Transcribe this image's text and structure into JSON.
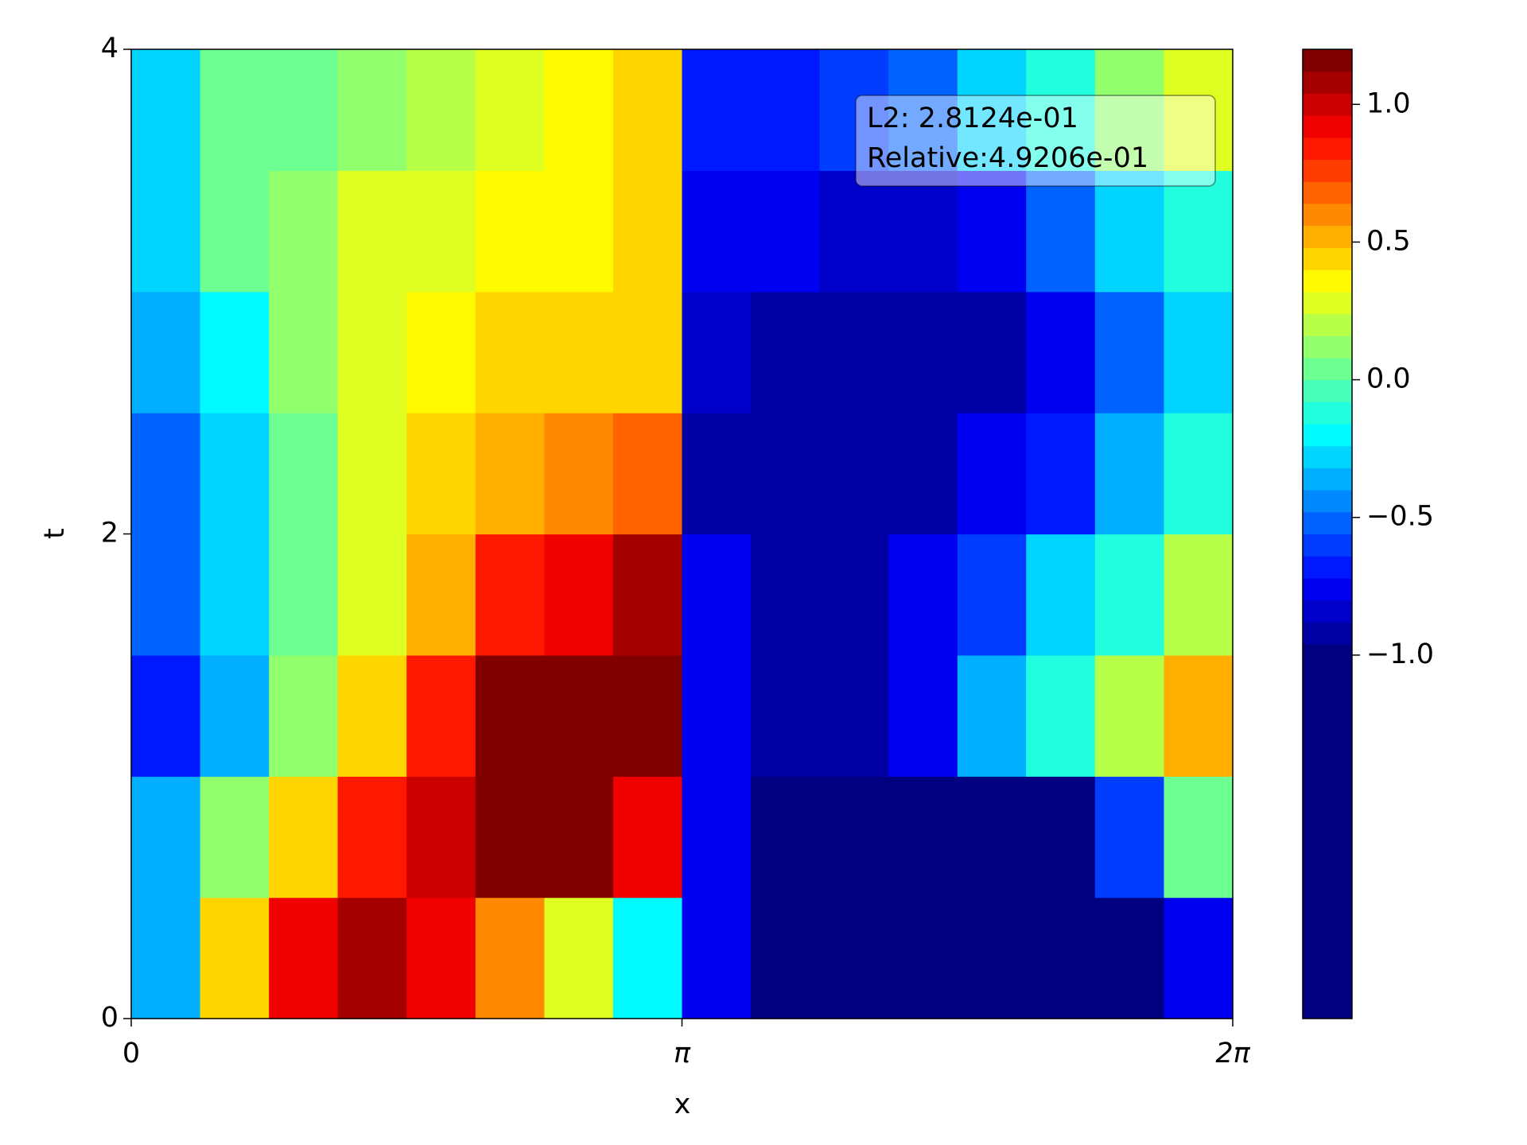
{
  "chart_data": {
    "type": "contourf",
    "xlabel": "x",
    "ylabel": "t",
    "colormap": "jet",
    "xlim": [
      0,
      6.2832
    ],
    "xticks": [
      0,
      {
        "value": 3.1416,
        "label": "π"
      },
      {
        "value": 6.2832,
        "label": "2π"
      }
    ],
    "ylim": [
      0,
      4
    ],
    "yticks": [
      0,
      2,
      4
    ],
    "x": [
      0.196,
      0.589,
      0.982,
      1.374,
      1.767,
      2.16,
      2.553,
      2.945,
      3.338,
      3.731,
      4.123,
      4.516,
      4.909,
      5.301,
      5.694,
      6.087
    ],
    "y": [
      0.25,
      0.75,
      1.25,
      1.75,
      2.25,
      2.75,
      3.25,
      3.75
    ],
    "z": [
      [
        -0.4,
        0.4,
        0.9,
        1.1,
        0.9,
        0.6,
        0.3,
        -0.2,
        -0.8,
        -1.3,
        -1.3,
        -1.3,
        -1.3,
        -1.3,
        -1.2,
        -0.8
      ],
      [
        -0.4,
        0.1,
        0.4,
        0.8,
        1.0,
        1.15,
        1.15,
        0.9,
        -0.8,
        -1.3,
        -1.3,
        -1.3,
        -1.3,
        -1.0,
        -0.6,
        0.0
      ],
      [
        -0.7,
        -0.4,
        0.1,
        0.4,
        0.8,
        1.15,
        1.15,
        1.15,
        -0.8,
        -0.9,
        -0.9,
        -0.8,
        -0.4,
        -0.1,
        0.2,
        0.5
      ],
      [
        -0.5,
        -0.3,
        0.0,
        0.3,
        0.5,
        0.8,
        0.9,
        1.1,
        -0.8,
        -0.9,
        -0.9,
        -0.8,
        -0.6,
        -0.3,
        -0.1,
        0.2
      ],
      [
        -0.5,
        -0.3,
        0.0,
        0.3,
        0.4,
        0.5,
        0.6,
        0.7,
        -0.9,
        -0.95,
        -0.95,
        -0.9,
        -0.8,
        -0.7,
        -0.4,
        -0.1
      ],
      [
        -0.4,
        -0.2,
        0.1,
        0.3,
        0.35,
        0.45,
        0.4,
        0.4,
        -0.85,
        -0.95,
        -0.95,
        -0.95,
        -0.9,
        -0.8,
        -0.5,
        -0.3
      ],
      [
        -0.3,
        0.0,
        0.1,
        0.25,
        0.3,
        0.35,
        0.35,
        0.4,
        -0.75,
        -0.8,
        -0.85,
        -0.85,
        -0.75,
        -0.55,
        -0.3,
        -0.1
      ],
      [
        -0.3,
        0.0,
        0.05,
        0.1,
        0.2,
        0.25,
        0.35,
        0.4,
        -0.7,
        -0.7,
        -0.6,
        -0.5,
        -0.3,
        -0.1,
        0.1,
        0.25
      ]
    ],
    "colorbar": {
      "lim": [
        -2.32,
        1.2
      ],
      "levels": [
        -2.32,
        -0.96,
        -0.88,
        -0.8,
        -0.72,
        -0.64,
        -0.56,
        -0.48,
        -0.4,
        -0.32,
        -0.24,
        -0.16,
        -0.08,
        0,
        0.08,
        0.16,
        0.24,
        0.32,
        0.4,
        0.48,
        0.56,
        0.64,
        0.72,
        0.8,
        0.88,
        0.96,
        1.04,
        1.12,
        1.2
      ],
      "ticks": [
        {
          "value": 1,
          "label": "1.0"
        },
        {
          "value": 0.5,
          "label": "0.5"
        },
        {
          "value": 0,
          "label": "0.0"
        },
        {
          "value": -0.5,
          "label": "−0.5"
        },
        {
          "value": -1,
          "label": "−1.0"
        }
      ]
    },
    "annotation": [
      "L2: 2.8124e-01",
      "Relative:4.9206e-01"
    ]
  }
}
